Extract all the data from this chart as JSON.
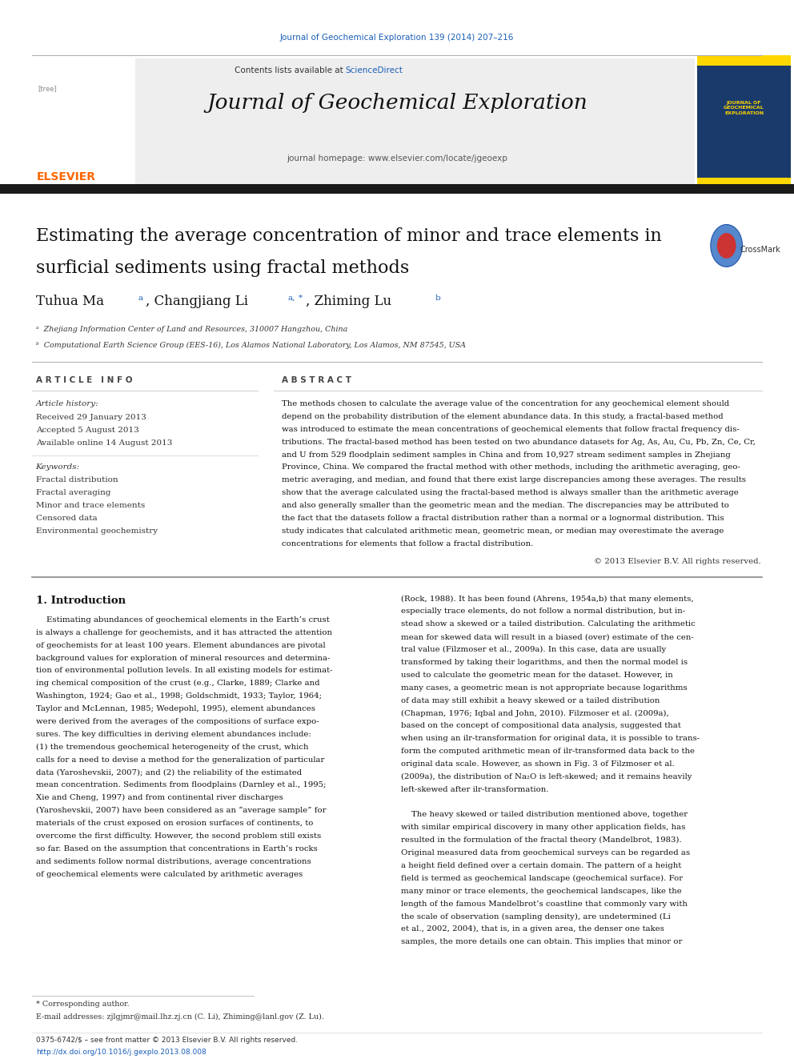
{
  "page_bg": "#ffffff",
  "top_journal_ref": "Journal of Geochemical Exploration 139 (2014) 207–216",
  "top_journal_ref_color": "#1a5eb8",
  "header_bg": "#e8e8e8",
  "header_sciencedirect_color": "#1a5eb8",
  "journal_title": "Journal of Geochemical Exploration",
  "journal_homepage": "journal homepage: www.elsevier.com/locate/jgeoexp",
  "elsevier_color": "#FF6600",
  "thick_bar_color": "#1a1a1a",
  "paper_title_line1": "Estimating the average concentration of minor and trace elements in",
  "paper_title_line2": "surficial sediments using fractal methods",
  "affil_a": "ᵃ  Zhejiang Information Center of Land and Resources, 310007 Hangzhou, China",
  "affil_b": "ᵇ  Computational Earth Science Group (EES-16), Los Alamos National Laboratory, Los Alamos, NM 87545, USA",
  "article_info_header": "A R T I C L E   I N F O",
  "abstract_header": "A B S T R A C T",
  "article_history_label": "Article history:",
  "received": "Received 29 January 2013",
  "accepted": "Accepted 5 August 2013",
  "available": "Available online 14 August 2013",
  "keywords_label": "Keywords:",
  "keywords": [
    "Fractal distribution",
    "Fractal averaging",
    "Minor and trace elements",
    "Censored data",
    "Environmental geochemistry"
  ],
  "copyright": "© 2013 Elsevier B.V. All rights reserved.",
  "intro_header": "1. Introduction",
  "footnote_star": "* Corresponding author.",
  "footnote_email": "E-mail addresses: zjlgjmr@mail.lhz.zj.cn (C. Li), Zhiming@lanl.gov (Z. Lu).",
  "issn_line": "0375-6742/$ – see front matter © 2013 Elsevier B.V. All rights reserved.",
  "doi_line": "http://dx.doi.org/10.1016/j.gexplo.2013.08.008",
  "abstract_lines": [
    "The methods chosen to calculate the average value of the concentration for any geochemical element should",
    "depend on the probability distribution of the element abundance data. In this study, a fractal-based method",
    "was introduced to estimate the mean concentrations of geochemical elements that follow fractal frequency dis-",
    "tributions. The fractal-based method has been tested on two abundance datasets for Ag, As, Au, Cu, Pb, Zn, Ce, Cr,",
    "and U from 529 floodplain sediment samples in China and from 10,927 stream sediment samples in Zhejiang",
    "Province, China. We compared the fractal method with other methods, including the arithmetic averaging, geo-",
    "metric averaging, and median, and found that there exist large discrepancies among these averages. The results",
    "show that the average calculated using the fractal-based method is always smaller than the arithmetic average",
    "and also generally smaller than the geometric mean and the median. The discrepancies may be attributed to",
    "the fact that the datasets follow a fractal distribution rather than a normal or a lognormal distribution. This",
    "study indicates that calculated arithmetic mean, geometric mean, or median may overestimate the average",
    "concentrations for elements that follow a fractal distribution."
  ],
  "intro_col1_lines": [
    "    Estimating abundances of geochemical elements in the Earth’s crust",
    "is always a challenge for geochemists, and it has attracted the attention",
    "of geochemists for at least 100 years. Element abundances are pivotal",
    "background values for exploration of mineral resources and determina-",
    "tion of environmental pollution levels. In all existing models for estimat-",
    "ing chemical composition of the crust (e.g., Clarke, 1889; Clarke and",
    "Washington, 1924; Gao et al., 1998; Goldschmidt, 1933; Taylor, 1964;",
    "Taylor and McLennan, 1985; Wedepohl, 1995), element abundances",
    "were derived from the averages of the compositions of surface expo-",
    "sures. The key difficulties in deriving element abundances include:",
    "(1) the tremendous geochemical heterogeneity of the crust, which",
    "calls for a need to devise a method for the generalization of particular",
    "data (Yaroshevskii, 2007); and (2) the reliability of the estimated",
    "mean concentration. Sediments from floodplains (Darnley et al., 1995;",
    "Xie and Cheng, 1997) and from continental river discharges",
    "(Yaroshevskii, 2007) have been considered as an “average sample” for",
    "materials of the crust exposed on erosion surfaces of continents, to",
    "overcome the first difficulty. However, the second problem still exists",
    "so far. Based on the assumption that concentrations in Earth’s rocks",
    "and sediments follow normal distributions, average concentrations",
    "of geochemical elements were calculated by arithmetic averages"
  ],
  "intro_col2_lines": [
    "(Rock, 1988). It has been found (Ahrens, 1954a,b) that many elements,",
    "especially trace elements, do not follow a normal distribution, but in-",
    "stead show a skewed or a tailed distribution. Calculating the arithmetic",
    "mean for skewed data will result in a biased (over) estimate of the cen-",
    "tral value (Filzmoser et al., 2009a). In this case, data are usually",
    "transformed by taking their logarithms, and then the normal model is",
    "used to calculate the geometric mean for the dataset. However, in",
    "many cases, a geometric mean is not appropriate because logarithms",
    "of data may still exhibit a heavy skewed or a tailed distribution",
    "(Chapman, 1976; Iqbal and John, 2010). Filzmoser et al. (2009a),",
    "based on the concept of compositional data analysis, suggested that",
    "when using an ilr-transformation for original data, it is possible to trans-",
    "form the computed arithmetic mean of ilr-transformed data back to the",
    "original data scale. However, as shown in Fig. 3 of Filzmoser et al.",
    "(2009a), the distribution of Na₂O is left-skewed; and it remains heavily",
    "left-skewed after ilr-transformation.",
    "",
    "    The heavy skewed or tailed distribution mentioned above, together",
    "with similar empirical discovery in many other application fields, has",
    "resulted in the formulation of the fractal theory (Mandelbrot, 1983).",
    "Original measured data from geochemical surveys can be regarded as",
    "a height field defined over a certain domain. The pattern of a height",
    "field is termed as geochemical landscape (geochemical surface). For",
    "many minor or trace elements, the geochemical landscapes, like the",
    "length of the famous Mandelbrot’s coastline that commonly vary with",
    "the scale of observation (sampling density), are undetermined (Li",
    "et al., 2002, 2004), that is, in a given area, the denser one takes",
    "samples, the more details one can obtain. This implies that minor or"
  ]
}
